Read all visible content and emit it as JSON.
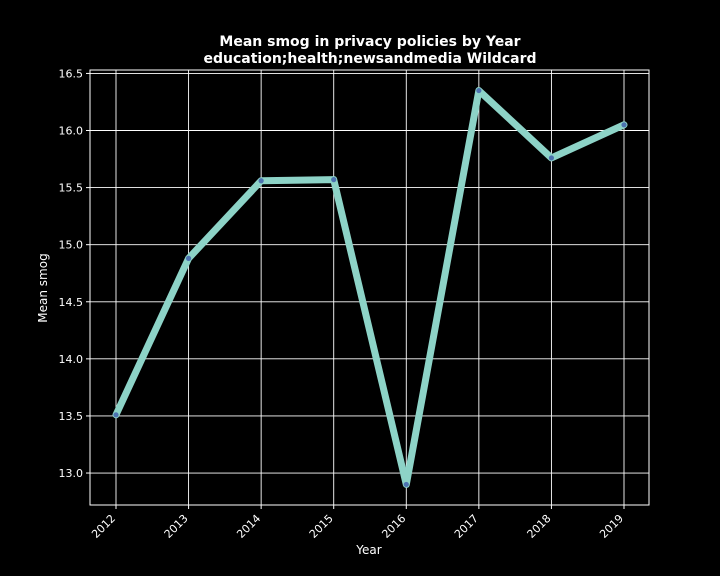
{
  "chart_data": {
    "type": "line",
    "title": "Mean smog in privacy policies by Year",
    "subtitle": "education;health;newsandmedia Wildcard",
    "xlabel": "Year",
    "ylabel": "Mean smog",
    "categories": [
      "2012",
      "2013",
      "2014",
      "2015",
      "2016",
      "2017",
      "2018",
      "2019"
    ],
    "series": [
      {
        "values": [
          13.51,
          14.88,
          15.56,
          15.57,
          12.9,
          16.35,
          15.76,
          16.05
        ],
        "color": "#8dd3c7",
        "marker_color": "#4c72b0"
      }
    ],
    "ylim": [
      12.72,
      16.53
    ],
    "yticks": [
      13.0,
      13.5,
      14.0,
      14.5,
      15.0,
      15.5,
      16.0,
      16.5
    ],
    "ytick_labels": [
      "13.0",
      "13.5",
      "14.0",
      "14.5",
      "15.0",
      "15.5",
      "16.0",
      "16.5"
    ],
    "grid": true,
    "background": "#000000",
    "grid_color": "#ffffff"
  }
}
